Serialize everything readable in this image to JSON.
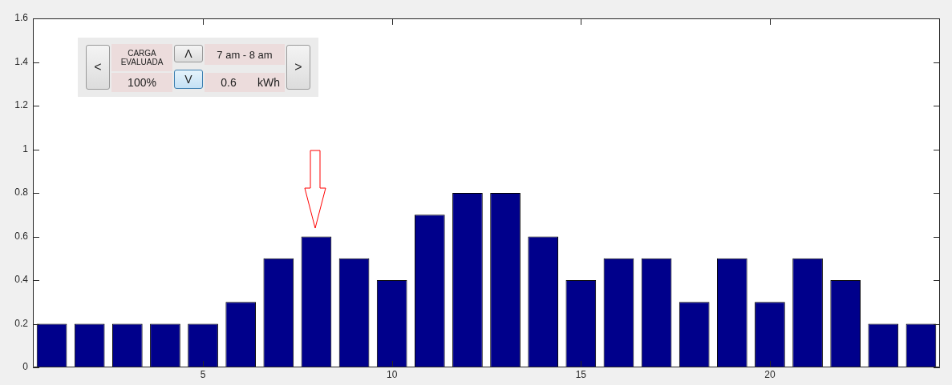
{
  "chart_data": {
    "type": "bar",
    "x": [
      1,
      2,
      3,
      4,
      5,
      6,
      7,
      8,
      9,
      10,
      11,
      12,
      13,
      14,
      15,
      16,
      17,
      18,
      19,
      20,
      21,
      22,
      23,
      24
    ],
    "values": [
      0.2,
      0.2,
      0.2,
      0.2,
      0.2,
      0.3,
      0.5,
      0.6,
      0.5,
      0.4,
      0.7,
      0.8,
      0.8,
      0.6,
      0.4,
      0.5,
      0.5,
      0.3,
      0.5,
      0.3,
      0.5,
      0.4,
      0.2,
      0.2
    ],
    "color": "#00008b",
    "xlim": [
      0.5,
      24.5
    ],
    "xticks": [
      5,
      10,
      15,
      20
    ],
    "ylim": [
      0,
      1.6
    ],
    "yticks": [
      0,
      0.2,
      0.4,
      0.6,
      0.8,
      1,
      1.2,
      1.4,
      1.6
    ],
    "legend": false,
    "annotations": [
      "<",
      "CARGA EVALUADA",
      "Λ",
      "7 am - 8 am",
      "100%",
      "V",
      "0.6",
      "kWh",
      ">"
    ]
  }
}
